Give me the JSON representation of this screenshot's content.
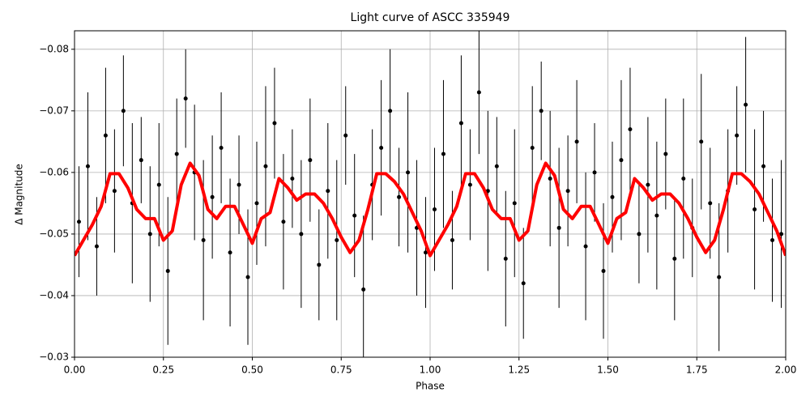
{
  "chart_data": {
    "type": "scatter",
    "title": "Light curve of ASCC 335949",
    "xlabel": "Phase",
    "ylabel": "Δ Magnitude",
    "xlim": [
      0,
      2
    ],
    "ylim": [
      -0.03,
      -0.083
    ],
    "grid": true,
    "xticks": [
      {
        "value": 0,
        "label": "0.00"
      },
      {
        "value": 0.25,
        "label": "0.25"
      },
      {
        "value": 0.5,
        "label": "0.50"
      },
      {
        "value": 0.75,
        "label": "0.75"
      },
      {
        "value": 1,
        "label": "1.00"
      },
      {
        "value": 1.25,
        "label": "1.25"
      },
      {
        "value": 1.5,
        "label": "1.50"
      },
      {
        "value": 1.75,
        "label": "1.75"
      },
      {
        "value": 2,
        "label": "2.00"
      }
    ],
    "yticks": [
      {
        "value": -0.08,
        "label": "−0.08"
      },
      {
        "value": -0.07,
        "label": "−0.07"
      },
      {
        "value": -0.06,
        "label": "−0.06"
      },
      {
        "value": -0.05,
        "label": "−0.05"
      },
      {
        "value": -0.04,
        "label": "−0.04"
      },
      {
        "value": -0.03,
        "label": "−0.03"
      }
    ],
    "points": {
      "color": "#000000",
      "x": [
        0.0125,
        0.0375,
        0.0625,
        0.0875,
        0.1125,
        0.1375,
        0.1625,
        0.1875,
        0.2125,
        0.2375,
        0.2625,
        0.2875,
        0.3125,
        0.3375,
        0.3625,
        0.3875,
        0.4125,
        0.4375,
        0.4625,
        0.4875,
        0.5125,
        0.5375,
        0.5625,
        0.5875,
        0.6125,
        0.6375,
        0.6625,
        0.6875,
        0.7125,
        0.7375,
        0.7625,
        0.7875,
        0.8125,
        0.8375,
        0.8625,
        0.8875,
        0.9125,
        0.9375,
        0.9625,
        0.9875,
        1.0125,
        1.0375,
        1.0625,
        1.0875,
        1.1125,
        1.1375,
        1.1625,
        1.1875,
        1.2125,
        1.2375,
        1.2625,
        1.2875,
        1.3125,
        1.3375,
        1.3625,
        1.3875,
        1.4125,
        1.4375,
        1.4625,
        1.4875,
        1.5125,
        1.5375,
        1.5625,
        1.5875,
        1.6125,
        1.6375,
        1.6625,
        1.6875,
        1.7125,
        1.7375,
        1.7625,
        1.7875,
        1.8125,
        1.8375,
        1.8625,
        1.8875,
        1.9125,
        1.9375,
        1.9625,
        1.9875
      ],
      "y": [
        -0.052,
        -0.061,
        -0.048,
        -0.066,
        -0.057,
        -0.07,
        -0.055,
        -0.062,
        -0.05,
        -0.058,
        -0.044,
        -0.063,
        -0.072,
        -0.06,
        -0.049,
        -0.056,
        -0.064,
        -0.047,
        -0.058,
        -0.043,
        -0.055,
        -0.061,
        -0.068,
        -0.052,
        -0.059,
        -0.05,
        -0.062,
        -0.045,
        -0.057,
        -0.049,
        -0.066,
        -0.053,
        -0.041,
        -0.058,
        -0.064,
        -0.07,
        -0.056,
        -0.06,
        -0.051,
        -0.047,
        -0.054,
        -0.063,
        -0.049,
        -0.068,
        -0.058,
        -0.073,
        -0.057,
        -0.061,
        -0.046,
        -0.055,
        -0.042,
        -0.064,
        -0.07,
        -0.059,
        -0.051,
        -0.057,
        -0.065,
        -0.048,
        -0.06,
        -0.044,
        -0.056,
        -0.062,
        -0.067,
        -0.05,
        -0.058,
        -0.053,
        -0.063,
        -0.046,
        -0.059,
        -0.051,
        -0.065,
        -0.055,
        -0.043,
        -0.057,
        -0.066,
        -0.071,
        -0.054,
        -0.061,
        -0.049,
        -0.05
      ],
      "errors": [
        0.009,
        0.012,
        0.008,
        0.011,
        0.01,
        0.009,
        0.013,
        0.007,
        0.011,
        0.01,
        0.012,
        0.009,
        0.008,
        0.011,
        0.013,
        0.01,
        0.009,
        0.012,
        0.008,
        0.011,
        0.01,
        0.013,
        0.009,
        0.011,
        0.008,
        0.012,
        0.01,
        0.009,
        0.011,
        0.013,
        0.008,
        0.01,
        0.012,
        0.009,
        0.011,
        0.01,
        0.008,
        0.013,
        0.011,
        0.009,
        0.01,
        0.012,
        0.008,
        0.011,
        0.009,
        0.01,
        0.013,
        0.008,
        0.011,
        0.012,
        0.009,
        0.01,
        0.008,
        0.011,
        0.013,
        0.009,
        0.01,
        0.012,
        0.008,
        0.011,
        0.009,
        0.013,
        0.01,
        0.008,
        0.011,
        0.012,
        0.009,
        0.01,
        0.013,
        0.008,
        0.011,
        0.009,
        0.012,
        0.01,
        0.008,
        0.011,
        0.013,
        0.009,
        0.01,
        0.012
      ]
    },
    "curve": {
      "color": "#ff0000",
      "x": [
        0,
        0.025,
        0.05,
        0.075,
        0.1,
        0.125,
        0.15,
        0.175,
        0.2,
        0.225,
        0.25,
        0.275,
        0.3,
        0.325,
        0.35,
        0.375,
        0.4,
        0.425,
        0.45,
        0.475,
        0.5,
        0.525,
        0.55,
        0.575,
        0.6,
        0.625,
        0.65,
        0.675,
        0.7,
        0.725,
        0.75,
        0.775,
        0.8,
        0.825,
        0.85,
        0.875,
        0.9,
        0.925,
        0.95,
        0.975,
        1,
        1.025,
        1.05,
        1.075,
        1.1,
        1.125,
        1.15,
        1.175,
        1.2,
        1.225,
        1.25,
        1.275,
        1.3,
        1.325,
        1.35,
        1.375,
        1.4,
        1.425,
        1.45,
        1.475,
        1.5,
        1.525,
        1.55,
        1.575,
        1.6,
        1.625,
        1.65,
        1.675,
        1.7,
        1.725,
        1.75,
        1.775,
        1.8,
        1.825,
        1.85,
        1.875,
        1.9,
        1.925,
        1.95,
        1.975,
        2
      ],
      "y": [
        -0.0465,
        -0.049,
        -0.0515,
        -0.0545,
        -0.0598,
        -0.0598,
        -0.0575,
        -0.054,
        -0.0525,
        -0.0525,
        -0.049,
        -0.0505,
        -0.058,
        -0.0615,
        -0.0595,
        -0.054,
        -0.0525,
        -0.0545,
        -0.0545,
        -0.0515,
        -0.0485,
        -0.0525,
        -0.0535,
        -0.059,
        -0.0575,
        -0.0555,
        -0.0565,
        -0.0565,
        -0.055,
        -0.0525,
        -0.0495,
        -0.047,
        -0.049,
        -0.054,
        -0.0598,
        -0.0598,
        -0.0585,
        -0.0565,
        -0.0535,
        -0.0505,
        -0.0465,
        -0.049,
        -0.0515,
        -0.0545,
        -0.0598,
        -0.0598,
        -0.0575,
        -0.054,
        -0.0525,
        -0.0525,
        -0.049,
        -0.0505,
        -0.058,
        -0.0615,
        -0.0595,
        -0.054,
        -0.0525,
        -0.0545,
        -0.0545,
        -0.0515,
        -0.0485,
        -0.0525,
        -0.0535,
        -0.059,
        -0.0575,
        -0.0555,
        -0.0565,
        -0.0565,
        -0.055,
        -0.0525,
        -0.0495,
        -0.047,
        -0.049,
        -0.054,
        -0.0598,
        -0.0598,
        -0.0585,
        -0.0565,
        -0.0535,
        -0.0505,
        -0.0465
      ]
    }
  }
}
